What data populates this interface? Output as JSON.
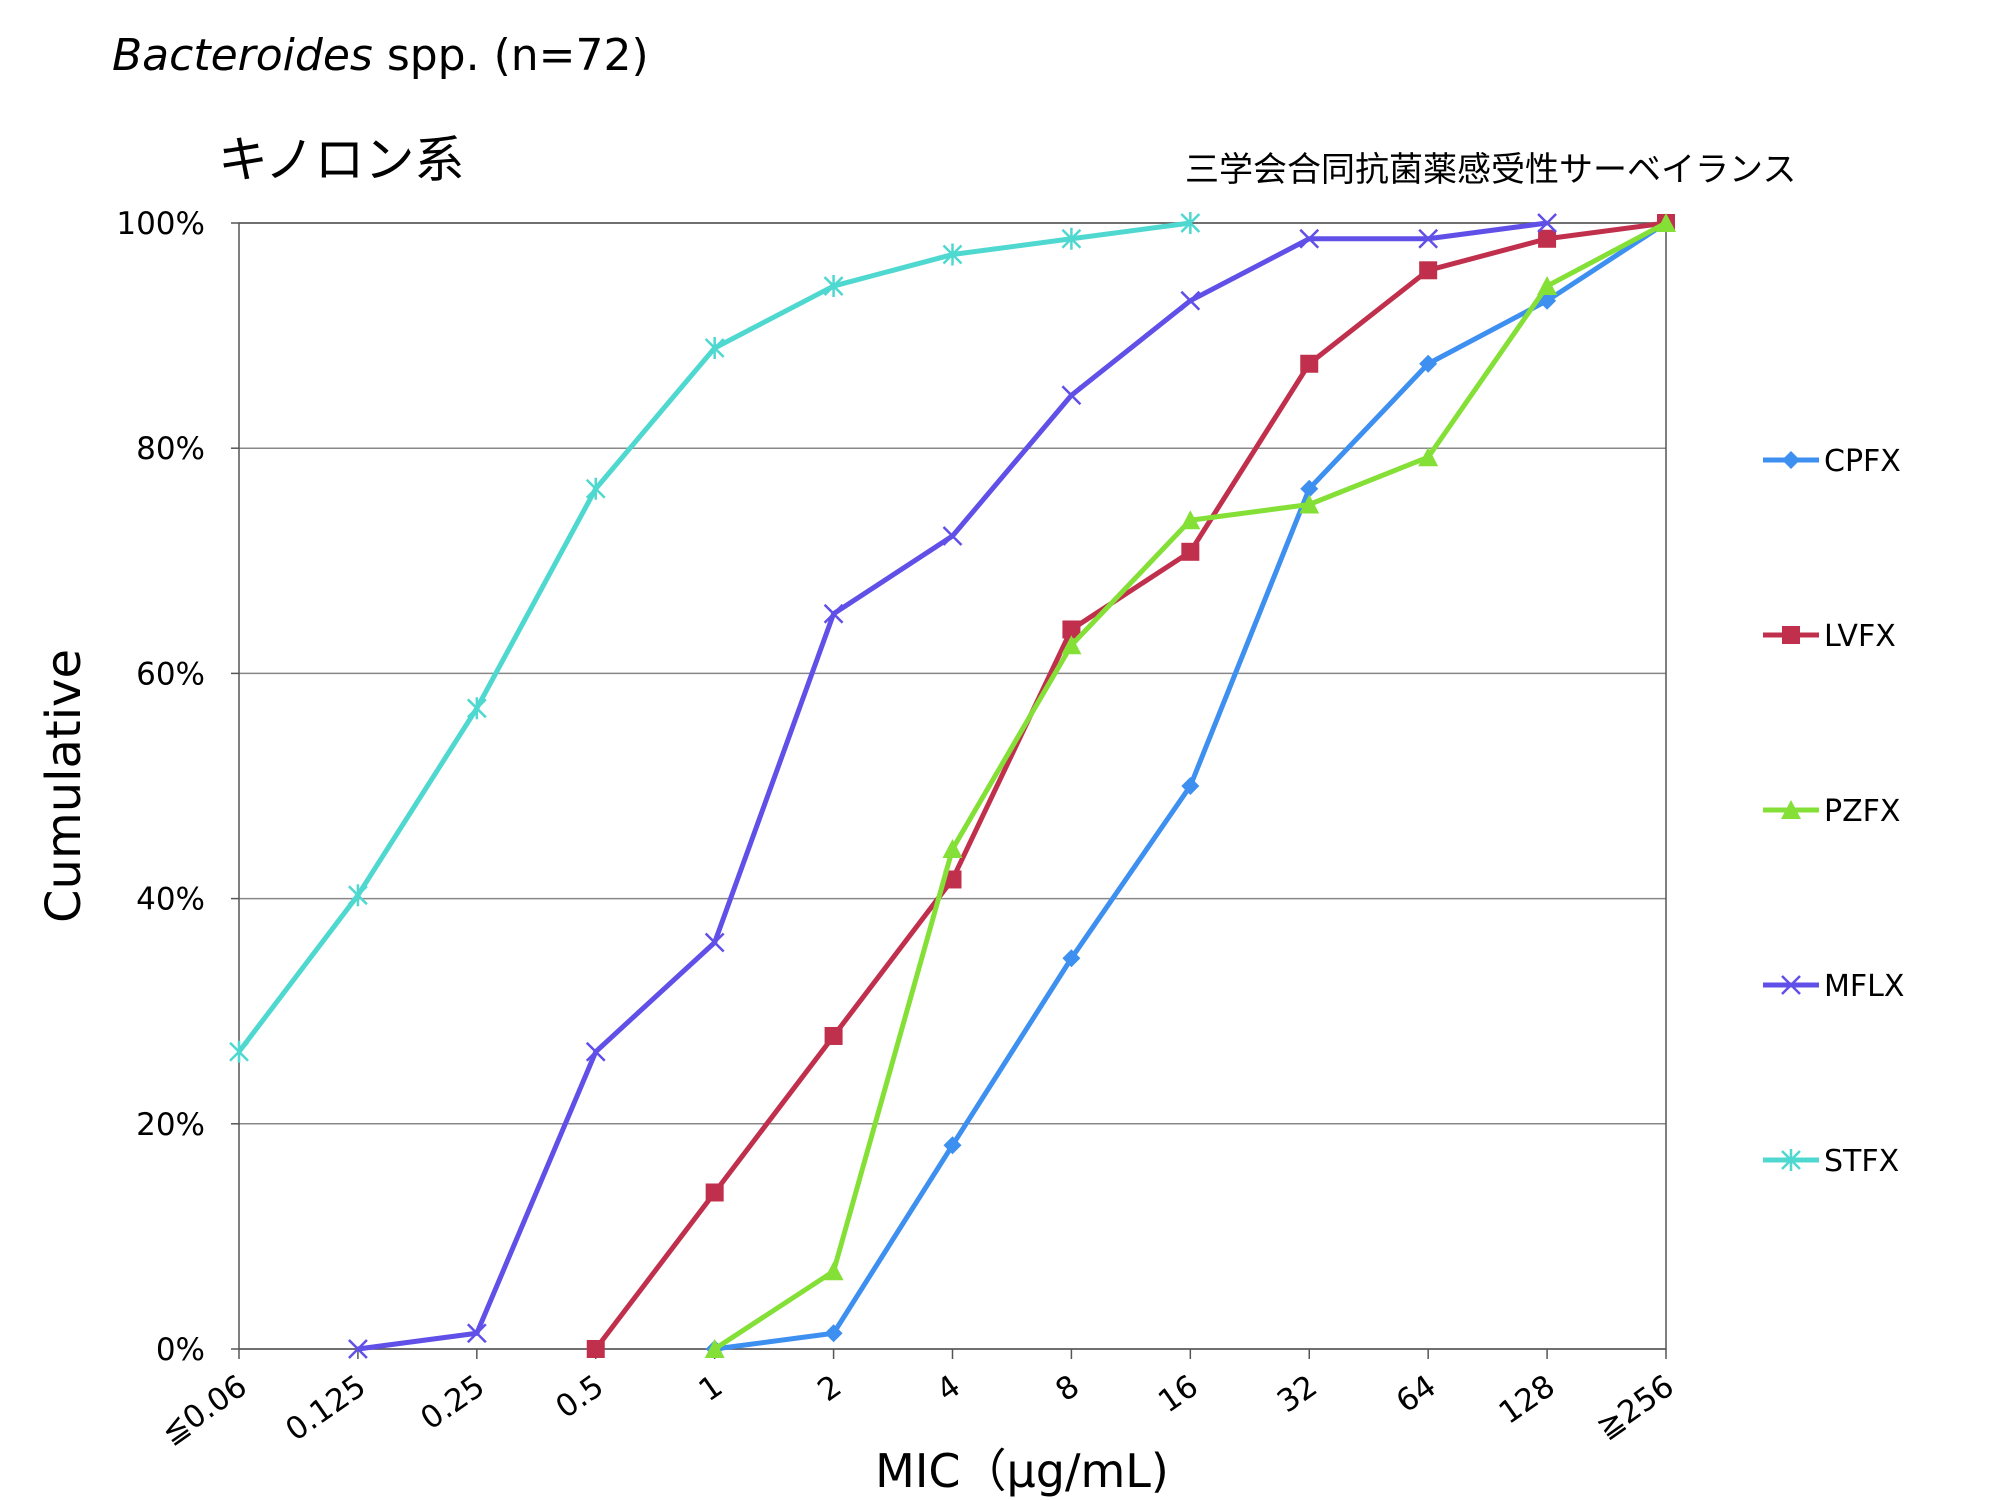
{
  "header": {
    "title_italic": "Bacteroides",
    "title_rest": " spp. (n=72)",
    "subtitle": "キノロン系",
    "source": "三学会合同抗菌薬感受性サーベイランス"
  },
  "chart_data": {
    "type": "line",
    "title": "Bacteroides spp. (n=72)",
    "subtitle": "キノロン系",
    "xlabel": "MIC（μg/mL)",
    "ylabel": "Cumulative",
    "categories": [
      "≦0.06",
      "0.125",
      "0.25",
      "0.5",
      "1",
      "2",
      "4",
      "8",
      "16",
      "32",
      "64",
      "128",
      "≧256"
    ],
    "yticks": [
      "0%",
      "20%",
      "40%",
      "60%",
      "80%",
      "100%"
    ],
    "ylim": [
      0,
      100
    ],
    "grid": "horizontal",
    "legend": "right",
    "series": [
      {
        "name": "CPFX",
        "color": "#3d8ff0",
        "marker": "diamond",
        "values": [
          null,
          null,
          null,
          null,
          0,
          1.4,
          18.1,
          34.7,
          50.0,
          76.4,
          87.5,
          93.1,
          100
        ]
      },
      {
        "name": "LVFX",
        "color": "#c0304d",
        "marker": "square",
        "values": [
          null,
          null,
          null,
          0,
          13.9,
          27.8,
          41.7,
          63.9,
          70.8,
          87.5,
          95.8,
          98.6,
          100
        ]
      },
      {
        "name": "PZFX",
        "color": "#84e036",
        "marker": "triangle",
        "values": [
          null,
          null,
          null,
          null,
          0,
          6.9,
          44.4,
          62.5,
          73.6,
          75.0,
          79.2,
          94.4,
          100
        ]
      },
      {
        "name": "MFLX",
        "color": "#6050e8",
        "marker": "x",
        "values": [
          null,
          0,
          1.4,
          26.4,
          36.1,
          65.3,
          72.2,
          84.7,
          93.1,
          98.6,
          98.6,
          100,
          null
        ]
      },
      {
        "name": "STFX",
        "color": "#4fd8d0",
        "marker": "asterisk",
        "values": [
          26.4,
          40.3,
          56.9,
          76.4,
          88.9,
          94.4,
          97.2,
          98.6,
          100,
          null,
          null,
          null,
          null
        ]
      }
    ]
  }
}
